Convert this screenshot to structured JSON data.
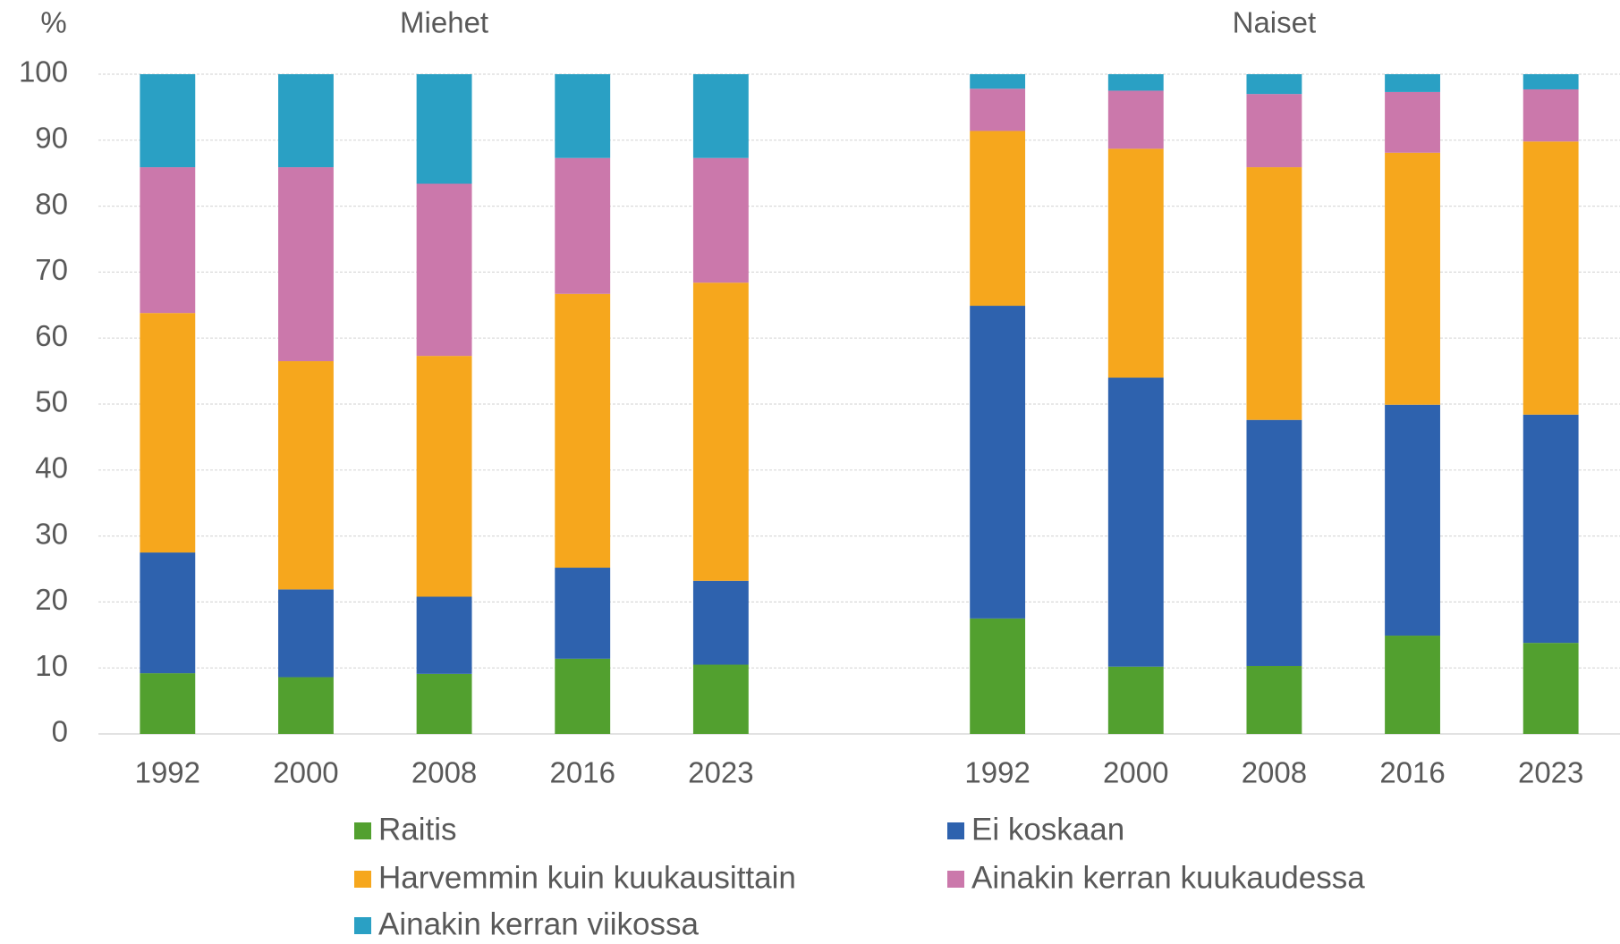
{
  "chart_data": {
    "type": "stacked_bar",
    "y_label": "%",
    "group_labels": [
      "Miehet",
      "Naiset"
    ],
    "categories": [
      "1992",
      "2000",
      "2008",
      "2016",
      "2023",
      "1992",
      "2000",
      "2008",
      "2016",
      "2023"
    ],
    "series": [
      {
        "name": "Raitis",
        "color": "#52a02f",
        "values": [
          9.2,
          8.6,
          9.1,
          11.4,
          10.5,
          17.5,
          10.2,
          10.3,
          14.9,
          13.8
        ]
      },
      {
        "name": "Ei koskaan",
        "color": "#2e62ae",
        "values": [
          18.3,
          13.3,
          11.7,
          13.8,
          12.7,
          47.4,
          43.8,
          37.3,
          35.0,
          34.6
        ]
      },
      {
        "name": "Harvemmin kuin kuukausittain",
        "color": "#f6a71d",
        "values": [
          36.3,
          34.6,
          36.5,
          41.5,
          45.2,
          26.5,
          34.7,
          38.3,
          38.2,
          41.4
        ]
      },
      {
        "name": "Ainakin kerran kuukaudessa",
        "color": "#cb78ab",
        "values": [
          22.1,
          29.4,
          26.1,
          20.6,
          18.9,
          6.4,
          8.8,
          11.1,
          9.2,
          7.9
        ]
      },
      {
        "name": "Ainakin kerran viikossa",
        "color": "#2aa0c4",
        "values": [
          14.1,
          14.1,
          16.6,
          12.7,
          12.7,
          2.2,
          2.5,
          3.0,
          2.7,
          2.3
        ]
      }
    ],
    "ylim": [
      0,
      100
    ],
    "yticks": [
      0,
      10,
      20,
      30,
      40,
      50,
      60,
      70,
      80,
      90,
      100
    ],
    "grid": true
  }
}
